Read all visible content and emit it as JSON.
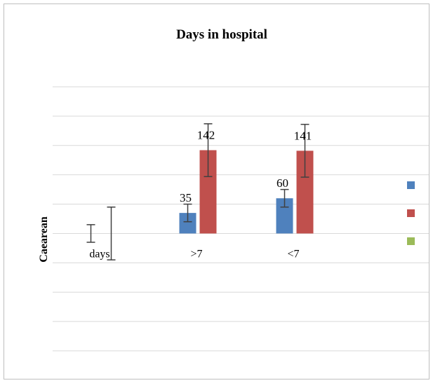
{
  "chart_data": {
    "type": "bar",
    "title": "Days in hospital",
    "ylabel": "Caearean",
    "xlabel": "",
    "categories": [
      "days",
      ">7",
      "<7"
    ],
    "series": [
      {
        "values": [
          null,
          35,
          60
        ],
        "color": "#4f81bd",
        "error": [
          null,
          15,
          15
        ]
      },
      {
        "values": [
          null,
          142,
          141
        ],
        "color": "#c0504d",
        "error": [
          null,
          45,
          45
        ]
      },
      {
        "values": [
          null,
          null,
          null
        ],
        "color": "#9bbb59"
      }
    ],
    "stray_error_bars": [
      {
        "category": 0,
        "series": 0,
        "center": 0,
        "error": 15
      },
      {
        "category": 0,
        "series": 1,
        "center": 0,
        "error": 45
      }
    ],
    "ylim": [
      -200,
      250
    ],
    "ytick_step": 50,
    "grid": true,
    "legend_position": "right"
  }
}
